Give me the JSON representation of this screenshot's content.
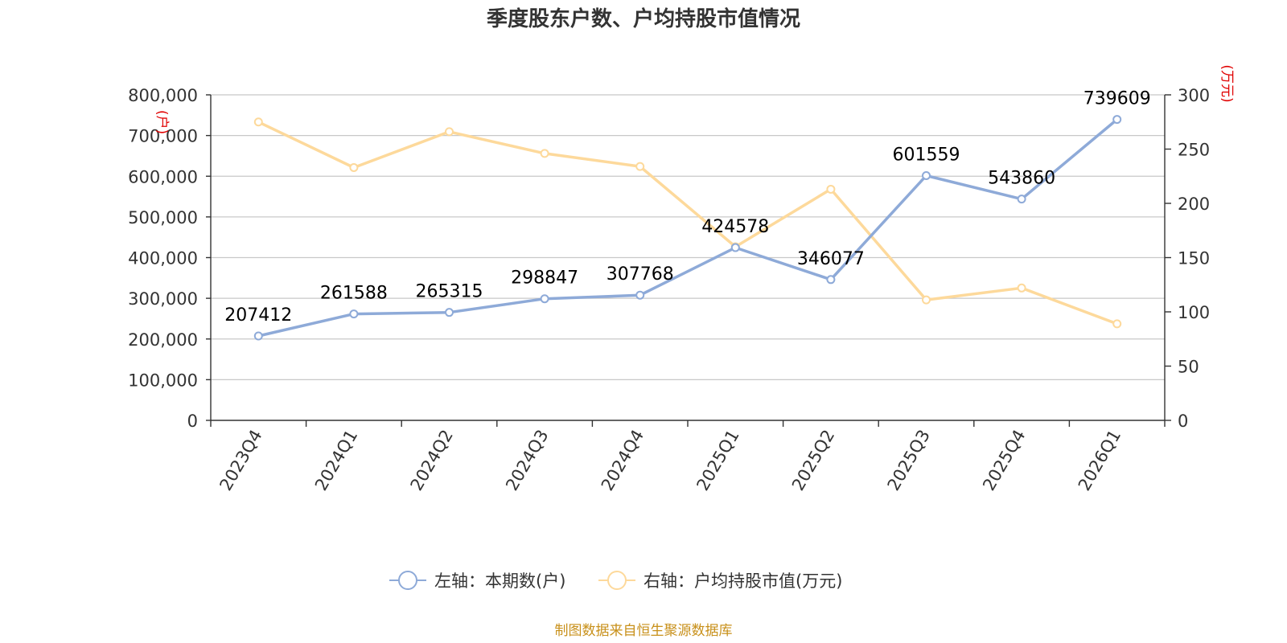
{
  "chart_data": {
    "type": "line",
    "title": "季度股东户数、户均持股市值情况",
    "categories": [
      "2023Q4",
      "2024Q1",
      "2024Q2",
      "2024Q3",
      "2024Q4",
      "2025Q1",
      "2025Q2",
      "2025Q3",
      "2025Q4",
      "2026Q1"
    ],
    "left_axis": {
      "unit": "(户)",
      "range": [
        0,
        800000
      ],
      "ticks": [
        "0",
        "100,000",
        "200,000",
        "300,000",
        "400,000",
        "500,000",
        "600,000",
        "700,000",
        "800,000"
      ]
    },
    "right_axis": {
      "unit": "(万元)",
      "range": [
        0,
        300
      ],
      "ticks": [
        "0",
        "50",
        "100",
        "150",
        "200",
        "250",
        "300"
      ]
    },
    "series": [
      {
        "name": "左轴：本期数(户)",
        "axis": "left",
        "color": "#8eaad8",
        "values": [
          207412,
          261588,
          265315,
          298847,
          307768,
          424578,
          346077,
          601559,
          543860,
          739609
        ],
        "labels": [
          "207412",
          "261588",
          "265315",
          "298847",
          "307768",
          "424578",
          "346077",
          "601559",
          "543860",
          "739609"
        ]
      },
      {
        "name": "右轴：户均持股市值(万元)",
        "axis": "right",
        "color": "#fdd99b",
        "values": [
          275,
          233,
          266,
          246,
          234,
          160,
          213,
          111,
          122,
          89
        ]
      }
    ],
    "grid": true,
    "legend_position": "bottom-center",
    "source": "制图数据来自恒生聚源数据库"
  }
}
